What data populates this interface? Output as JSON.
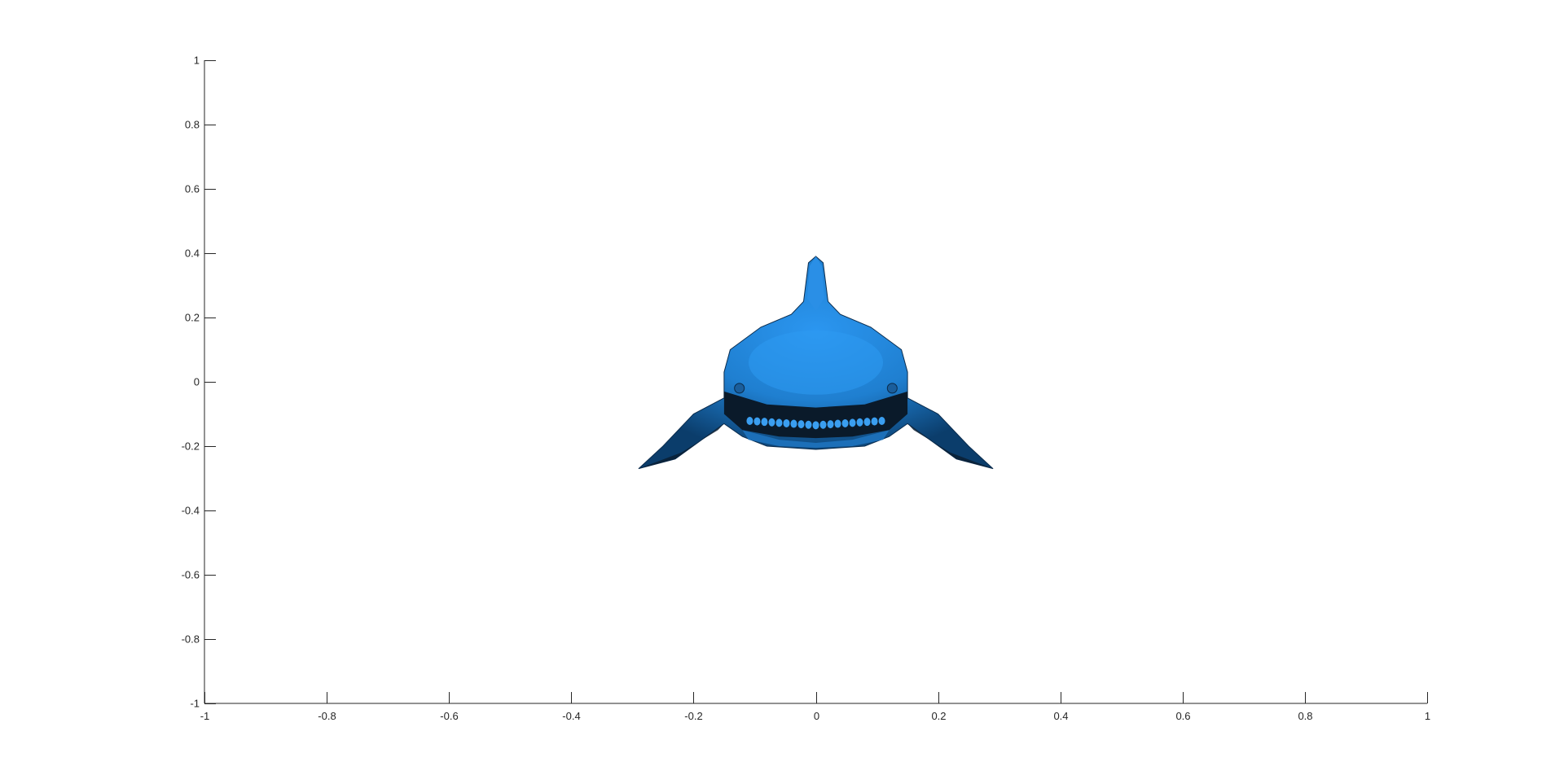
{
  "chart_data": {
    "type": "surface",
    "title": "",
    "xlabel": "",
    "ylabel": "",
    "xlim": [
      -1,
      1
    ],
    "ylim": [
      -1,
      1
    ],
    "grid": false,
    "legend": "none",
    "x_ticks": [
      "-1",
      "-0.8",
      "-0.6",
      "-0.4",
      "-0.2",
      "0",
      "0.2",
      "0.4",
      "0.6",
      "0.8",
      "1"
    ],
    "y_ticks": [
      "1",
      "0.8",
      "0.6",
      "0.4",
      "0.2",
      "0",
      "-0.2",
      "-0.4",
      "-0.6",
      "-0.8",
      "-1"
    ],
    "object": {
      "name": "shark-front-view",
      "color": "#1f7fd0",
      "shadow_color": "#0a1a2a",
      "extent": {
        "x": [
          -0.29,
          0.29
        ],
        "y": [
          -0.27,
          0.39
        ]
      },
      "body_outline": [
        [
          0.0,
          0.39
        ],
        [
          0.012,
          0.37
        ],
        [
          0.02,
          0.25
        ],
        [
          0.04,
          0.21
        ],
        [
          0.09,
          0.17
        ],
        [
          0.14,
          0.1
        ],
        [
          0.15,
          0.03
        ],
        [
          0.15,
          -0.05
        ],
        [
          0.2,
          -0.1
        ],
        [
          0.25,
          -0.2
        ],
        [
          0.29,
          -0.27
        ],
        [
          0.23,
          -0.24
        ],
        [
          0.15,
          -0.13
        ],
        [
          0.12,
          -0.17
        ],
        [
          0.08,
          -0.2
        ],
        [
          0.0,
          -0.21
        ],
        [
          -0.08,
          -0.2
        ],
        [
          -0.12,
          -0.17
        ],
        [
          -0.15,
          -0.13
        ],
        [
          -0.23,
          -0.24
        ],
        [
          -0.29,
          -0.27
        ],
        [
          -0.25,
          -0.2
        ],
        [
          -0.2,
          -0.1
        ],
        [
          -0.15,
          -0.05
        ],
        [
          -0.15,
          0.03
        ],
        [
          -0.14,
          0.1
        ],
        [
          -0.09,
          0.17
        ],
        [
          -0.04,
          0.21
        ],
        [
          -0.02,
          0.25
        ],
        [
          -0.012,
          0.37
        ]
      ]
    }
  }
}
